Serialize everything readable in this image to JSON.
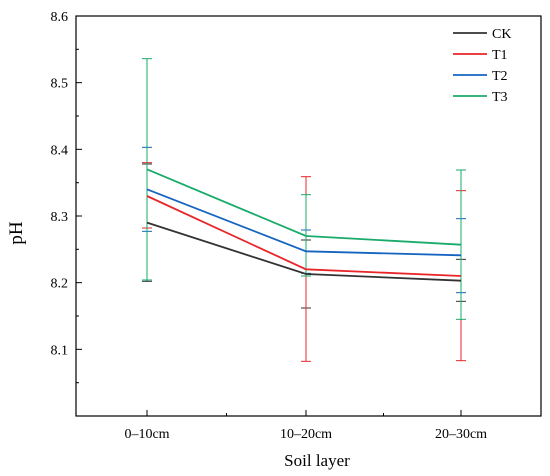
{
  "chart_data": {
    "type": "line",
    "title": "",
    "xlabel": "Soil layer",
    "ylabel": "pH",
    "categories": [
      "0–10cm",
      "10–20cm",
      "20–30cm"
    ],
    "ylim": [
      8.0,
      8.6
    ],
    "yticks": [
      "8.1",
      "8.2",
      "8.3",
      "8.4",
      "8.5",
      "8.6"
    ],
    "grid": false,
    "legend_position": "top-right",
    "series": [
      {
        "name": "CK",
        "color": "#333333",
        "values": [
          8.29,
          8.213,
          8.203
        ],
        "err_lo": [
          8.202,
          8.162,
          8.172
        ],
        "err_hi": [
          8.378,
          8.264,
          8.235
        ]
      },
      {
        "name": "T1",
        "color": "#e8262a",
        "values": [
          8.33,
          8.22,
          8.21
        ],
        "err_lo": [
          8.282,
          8.082,
          8.083
        ],
        "err_hi": [
          8.38,
          8.359,
          8.338
        ]
      },
      {
        "name": "T2",
        "color": "#1565c0",
        "values": [
          8.34,
          8.247,
          8.241
        ],
        "err_lo": [
          8.277,
          8.214,
          8.185
        ],
        "err_hi": [
          8.403,
          8.279,
          8.296
        ]
      },
      {
        "name": "T3",
        "color": "#1aab6a",
        "values": [
          8.37,
          8.27,
          8.257
        ],
        "err_lo": [
          8.204,
          8.21,
          8.145
        ],
        "err_hi": [
          8.536,
          8.332,
          8.369
        ]
      }
    ]
  }
}
